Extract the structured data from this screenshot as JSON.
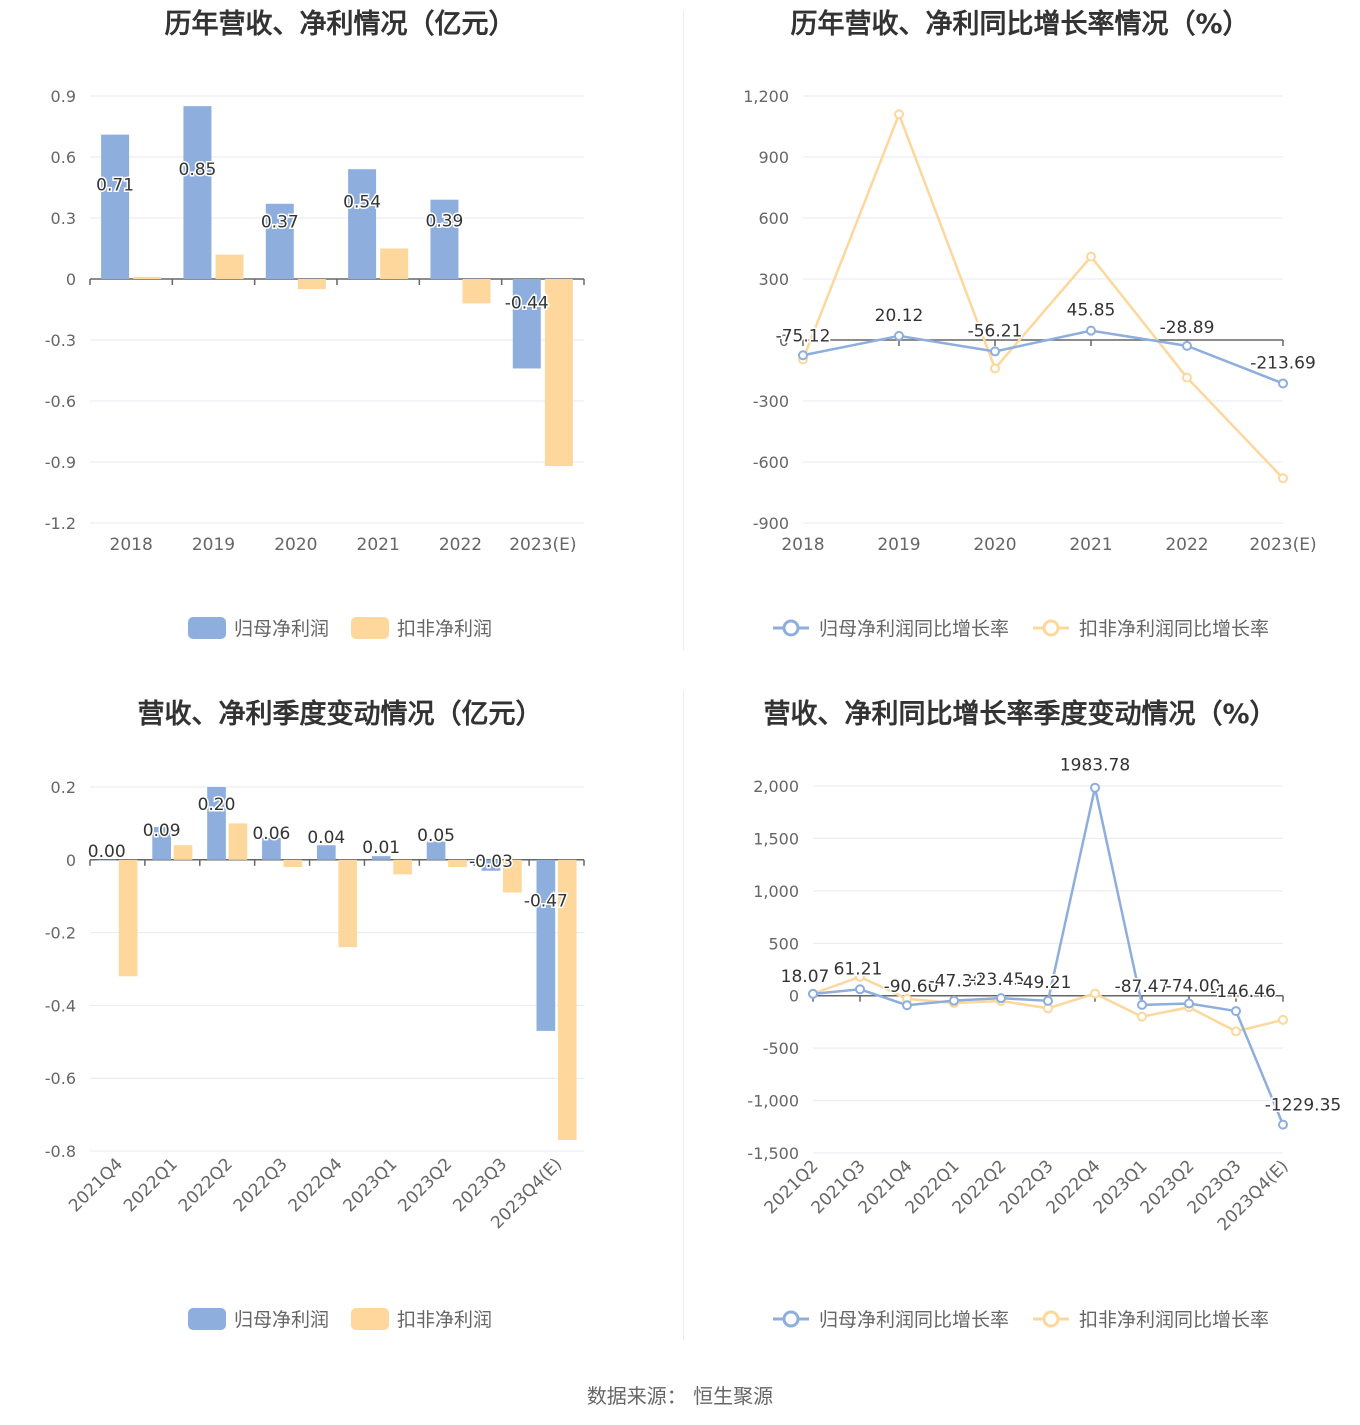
{
  "colors": {
    "primary": "#8eaedd",
    "secondary": "#fdd79c",
    "axis": "#666666",
    "grid": "#e6e9f2",
    "label": "#333333"
  },
  "footer": {
    "source": "数据来源：  恒生聚源"
  },
  "chart_data": [
    {
      "id": "annual-profit",
      "type": "bar",
      "title": "历年营收、净利情况（亿元）",
      "categories": [
        "2018",
        "2019",
        "2020",
        "2021",
        "2022",
        "2023(E)"
      ],
      "series": [
        {
          "name": "归母净利润",
          "values": [
            0.71,
            0.85,
            0.37,
            0.54,
            0.39,
            -0.44
          ],
          "labels": [
            "0.71",
            "0.85",
            "0.37",
            "0.54",
            "0.39",
            "-0.44"
          ]
        },
        {
          "name": "扣非净利润",
          "values": [
            0.01,
            0.12,
            -0.05,
            0.15,
            -0.12,
            -0.92
          ]
        }
      ],
      "ylim": [
        -1.2,
        0.9
      ],
      "yticks": [
        0.9,
        0.6,
        0.3,
        0,
        -0.3,
        -0.6,
        -0.9,
        -1.2
      ],
      "ytick_labels": [
        "0.9",
        "0.6",
        "0.3",
        "0",
        "-0.3",
        "-0.6",
        "-0.9",
        "-1.2"
      ],
      "grid": true,
      "legend": "bottom"
    },
    {
      "id": "annual-growth",
      "type": "line",
      "title": "历年营收、净利同比增长率情况（%）",
      "categories": [
        "2018",
        "2019",
        "2020",
        "2021",
        "2022",
        "2023(E)"
      ],
      "series": [
        {
          "name": "归母净利润同比增长率",
          "values": [
            -75.12,
            20.12,
            -56.21,
            45.85,
            -28.89,
            -213.69
          ],
          "labels": [
            "-75.12",
            "20.12",
            "-56.21",
            "45.85",
            "-28.89",
            "-213.69"
          ]
        },
        {
          "name": "扣非净利润同比增长率",
          "values": [
            -95,
            1110,
            -140,
            410,
            -185,
            -680
          ]
        }
      ],
      "ylim": [
        -900,
        1200
      ],
      "yticks": [
        1200,
        900,
        600,
        300,
        0,
        -300,
        -600,
        -900
      ],
      "ytick_labels": [
        "1,200",
        "900",
        "600",
        "300",
        "0",
        "-300",
        "-600",
        "-900"
      ],
      "grid": true,
      "legend": "bottom"
    },
    {
      "id": "quarterly-profit",
      "type": "bar",
      "title": "营收、净利季度变动情况（亿元）",
      "categories": [
        "2021Q4",
        "2022Q1",
        "2022Q2",
        "2022Q3",
        "2022Q4",
        "2023Q1",
        "2023Q2",
        "2023Q3",
        "2023Q4(E)"
      ],
      "series": [
        {
          "name": "归母净利润",
          "values": [
            0.0,
            0.09,
            0.2,
            0.06,
            0.04,
            0.01,
            0.05,
            -0.03,
            -0.47
          ],
          "labels": [
            "0.00",
            "0.09",
            "0.20",
            "0.06",
            "0.04",
            "0.01",
            "0.05",
            "-0.03",
            "-0.47"
          ]
        },
        {
          "name": "扣非净利润",
          "values": [
            -0.32,
            0.04,
            0.1,
            -0.02,
            -0.24,
            -0.04,
            -0.02,
            -0.09,
            -0.77
          ]
        }
      ],
      "ylim": [
        -0.8,
        0.2
      ],
      "yticks": [
        0.2,
        0,
        -0.2,
        -0.4,
        -0.6,
        -0.8
      ],
      "ytick_labels": [
        "0.2",
        "0",
        "-0.2",
        "-0.4",
        "-0.6",
        "-0.8"
      ],
      "grid": true,
      "legend": "bottom"
    },
    {
      "id": "quarterly-growth",
      "type": "line",
      "title": "营收、净利同比增长率季度变动情况（%）",
      "categories": [
        "2021Q2",
        "2021Q3",
        "2021Q4",
        "2022Q1",
        "2022Q2",
        "2022Q3",
        "2022Q4",
        "2023Q1",
        "2023Q2",
        "2023Q3",
        "2023Q4(E)"
      ],
      "series": [
        {
          "name": "归母净利润同比增长率",
          "values": [
            18.07,
            61.21,
            -90.6,
            -47.3,
            -23.45,
            -49.21,
            1983.78,
            -87.47,
            -74.0,
            -146.46,
            -1229.35
          ],
          "labels": [
            "18.07",
            "61.21",
            "-90.60",
            "-47.30",
            "-23.45",
            "-49.21",
            "1983.78",
            "-87.47",
            "-74.00",
            "-146.46",
            "-1229.35"
          ]
        },
        {
          "name": "扣非净利润同比增长率",
          "values": [
            20,
            180,
            -30,
            -70,
            -50,
            -120,
            20,
            -200,
            -110,
            -340,
            -230
          ]
        }
      ],
      "ylim": [
        -1500,
        2000
      ],
      "yticks": [
        2000,
        1500,
        1000,
        500,
        0,
        -500,
        -1000,
        -1500
      ],
      "ytick_labels": [
        "2,000",
        "1,500",
        "1,000",
        "500",
        "0",
        "-500",
        "-1,000",
        "-1,500"
      ],
      "grid": true,
      "legend": "bottom"
    }
  ]
}
